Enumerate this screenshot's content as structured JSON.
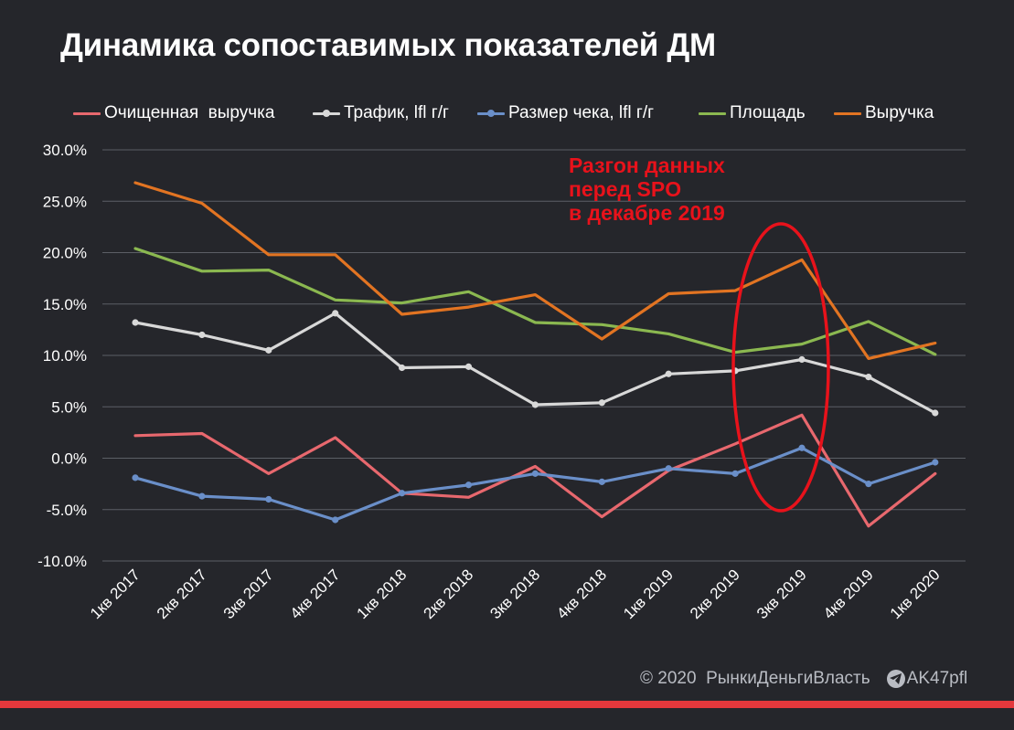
{
  "header": {
    "title": "Динамика сопоставимых показателей ДМ"
  },
  "annotation": {
    "lines": [
      "Разгон данных",
      "перед SPO",
      "в декабре 2019"
    ],
    "color": "#e8121b"
  },
  "footer": {
    "copyright": "© 2020  РынкиДеньгиВласть",
    "channel": "AK47pfl"
  },
  "colors": {
    "background": "#25262b",
    "grid": "#5c5f66",
    "text": "#ffffff",
    "bottom_bar": "#e4383c"
  },
  "chart_data": {
    "type": "line",
    "title": "Динамика сопоставимых показателей ДМ",
    "xlabel": "",
    "ylabel": "",
    "ylim": [
      -10,
      30
    ],
    "y_ticks": [
      "30.0%",
      "25.0%",
      "20.0%",
      "15.0%",
      "10.0%",
      "5.0%",
      "0.0%",
      "-5.0%",
      "-10.0%"
    ],
    "grid": true,
    "legend_position": "top",
    "categories": [
      "1кв 2017",
      "2кв 2017",
      "3кв 2017",
      "4кв 2017",
      "1кв 2018",
      "2кв 2018",
      "3кв 2018",
      "4кв 2018",
      "1кв 2019",
      "2кв 2019",
      "3кв 2019",
      "4кв 2019",
      "1кв 2020"
    ],
    "series": [
      {
        "name": "Очищенная  выручка",
        "color": "#e8686e",
        "markers": false,
        "values": [
          2.2,
          2.4,
          -1.5,
          2.0,
          -3.4,
          -3.8,
          -0.8,
          -5.7,
          -1.2,
          1.4,
          4.2,
          -6.6,
          -1.5
        ]
      },
      {
        "name": "Трафик, lfl г/г",
        "color": "#d8d8d8",
        "markers": true,
        "values": [
          13.2,
          12.0,
          10.5,
          14.1,
          8.8,
          8.9,
          5.2,
          5.4,
          8.2,
          8.5,
          9.6,
          7.9,
          4.4
        ]
      },
      {
        "name": "Размер чека, lfl г/г",
        "color": "#6a8fc9",
        "markers": true,
        "values": [
          -1.9,
          -3.7,
          -4.0,
          -6.0,
          -3.4,
          -2.6,
          -1.5,
          -2.3,
          -1.0,
          -1.5,
          1.0,
          -2.5,
          -0.4
        ]
      },
      {
        "name": "Площадь",
        "color": "#8bb850",
        "markers": false,
        "values": [
          20.4,
          18.2,
          18.3,
          15.4,
          15.1,
          16.2,
          13.2,
          13.0,
          12.1,
          10.3,
          11.1,
          13.3,
          10.1
        ]
      },
      {
        "name": "Выручка",
        "color": "#e27422",
        "markers": false,
        "values": [
          26.8,
          24.8,
          19.8,
          19.8,
          14.0,
          14.7,
          15.9,
          11.6,
          16.0,
          16.3,
          19.3,
          9.7,
          11.2
        ]
      }
    ]
  }
}
